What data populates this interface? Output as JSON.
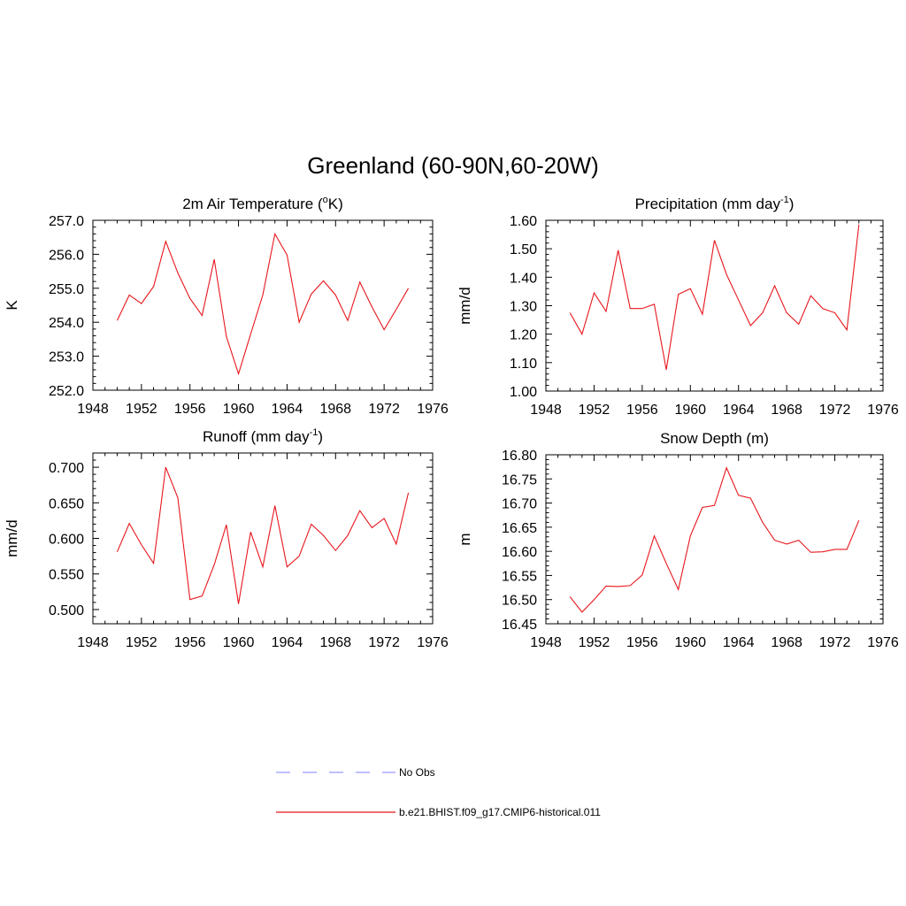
{
  "title": "Greenland (60-90N,60-20W)",
  "series_color": "#e8161c",
  "obs_color": "#9999ff",
  "legend": {
    "items": [
      {
        "label": "No Obs",
        "style": "dashed"
      },
      {
        "label": "b.e21.BHIST.f09_g17.CMIP6-historical.011",
        "style": "solid"
      }
    ]
  },
  "chart_data": [
    {
      "type": "line",
      "title_main": "2m Air Temperature (",
      "title_sup": "o",
      "title_tail": "K)",
      "ylabel": "K",
      "xlim": [
        1948,
        1976
      ],
      "ylim": [
        252.0,
        257.0
      ],
      "x_ticks": [
        "1948",
        "1952",
        "1956",
        "1960",
        "1964",
        "1968",
        "1972",
        "1976"
      ],
      "y_ticks": [
        "252.0",
        "253.0",
        "254.0",
        "255.0",
        "256.0",
        "257.0"
      ],
      "x": [
        1950,
        1951,
        1952,
        1953,
        1954,
        1955,
        1956,
        1957,
        1958,
        1959,
        1960,
        1961,
        1962,
        1963,
        1964,
        1965,
        1966,
        1967,
        1968,
        1969,
        1970,
        1971,
        1972,
        1973,
        1974
      ],
      "series": [
        {
          "name": "b.e21.BHIST.f09_g17.CMIP6-historical.011",
          "values": [
            254.05,
            254.8,
            254.55,
            255.05,
            256.38,
            255.45,
            254.7,
            254.2,
            255.85,
            253.58,
            252.48,
            253.65,
            254.8,
            256.6,
            255.98,
            254.0,
            254.83,
            255.22,
            254.8,
            254.05,
            255.18,
            254.45,
            253.78,
            254.38,
            255.0
          ]
        }
      ]
    },
    {
      "type": "line",
      "title_main": "Precipitation (mm day",
      "title_sup": "-1",
      "title_tail": ")",
      "ylabel": "mm/d",
      "xlim": [
        1948,
        1976
      ],
      "ylim": [
        1.0,
        1.6
      ],
      "x_ticks": [
        "1948",
        "1952",
        "1956",
        "1960",
        "1964",
        "1968",
        "1972",
        "1976"
      ],
      "y_ticks": [
        "1.00",
        "1.10",
        "1.20",
        "1.30",
        "1.40",
        "1.50",
        "1.60"
      ],
      "x": [
        1950,
        1951,
        1952,
        1953,
        1954,
        1955,
        1956,
        1957,
        1958,
        1959,
        1960,
        1961,
        1962,
        1963,
        1964,
        1965,
        1966,
        1967,
        1968,
        1969,
        1970,
        1971,
        1972,
        1973,
        1974
      ],
      "series": [
        {
          "name": "b.e21.BHIST.f09_g17.CMIP6-historical.011",
          "values": [
            1.275,
            1.2,
            1.345,
            1.28,
            1.495,
            1.29,
            1.29,
            1.305,
            1.075,
            1.34,
            1.36,
            1.27,
            1.53,
            1.41,
            1.32,
            1.23,
            1.275,
            1.37,
            1.275,
            1.235,
            1.335,
            1.29,
            1.275,
            1.215,
            1.585
          ]
        }
      ]
    },
    {
      "type": "line",
      "title_main": "Runoff (mm day",
      "title_sup": "-1",
      "title_tail": ")",
      "ylabel": "mm/d",
      "xlim": [
        1948,
        1976
      ],
      "ylim": [
        0.48,
        0.72
      ],
      "x_ticks": [
        "1948",
        "1952",
        "1956",
        "1960",
        "1964",
        "1968",
        "1972",
        "1976"
      ],
      "y_ticks": [
        "0.500",
        "0.550",
        "0.600",
        "0.650",
        "0.700"
      ],
      "y_tick_values": [
        0.5,
        0.55,
        0.6,
        0.65,
        0.7
      ],
      "x": [
        1950,
        1951,
        1952,
        1953,
        1954,
        1955,
        1956,
        1957,
        1958,
        1959,
        1960,
        1961,
        1962,
        1963,
        1964,
        1965,
        1966,
        1967,
        1968,
        1969,
        1970,
        1971,
        1972,
        1973,
        1974
      ],
      "series": [
        {
          "name": "b.e21.BHIST.f09_g17.CMIP6-historical.011",
          "values": [
            0.581,
            0.621,
            0.591,
            0.565,
            0.7,
            0.657,
            0.514,
            0.519,
            0.563,
            0.619,
            0.508,
            0.609,
            0.56,
            0.646,
            0.56,
            0.575,
            0.62,
            0.604,
            0.583,
            0.604,
            0.639,
            0.615,
            0.628,
            0.592,
            0.664
          ]
        }
      ]
    },
    {
      "type": "line",
      "title_main": "Snow Depth (m)",
      "title_sup": "",
      "title_tail": "",
      "ylabel": "m",
      "xlim": [
        1948,
        1976
      ],
      "ylim": [
        16.45,
        16.8
      ],
      "x_ticks": [
        "1948",
        "1952",
        "1956",
        "1960",
        "1964",
        "1968",
        "1972",
        "1976"
      ],
      "y_ticks": [
        "16.45",
        "16.50",
        "16.55",
        "16.60",
        "16.65",
        "16.70",
        "16.75",
        "16.80"
      ],
      "x": [
        1950,
        1951,
        1952,
        1953,
        1954,
        1955,
        1956,
        1957,
        1958,
        1959,
        1960,
        1961,
        1962,
        1963,
        1964,
        1965,
        1966,
        1967,
        1968,
        1969,
        1970,
        1971,
        1972,
        1973,
        1974
      ],
      "series": [
        {
          "name": "b.e21.BHIST.f09_g17.CMIP6-historical.011",
          "values": [
            16.506,
            16.474,
            16.5,
            16.528,
            16.527,
            16.529,
            16.551,
            16.632,
            16.575,
            16.521,
            16.632,
            16.691,
            16.695,
            16.773,
            16.716,
            16.71,
            16.66,
            16.623,
            16.615,
            16.623,
            16.598,
            16.599,
            16.604,
            16.604,
            16.664
          ]
        }
      ]
    }
  ]
}
